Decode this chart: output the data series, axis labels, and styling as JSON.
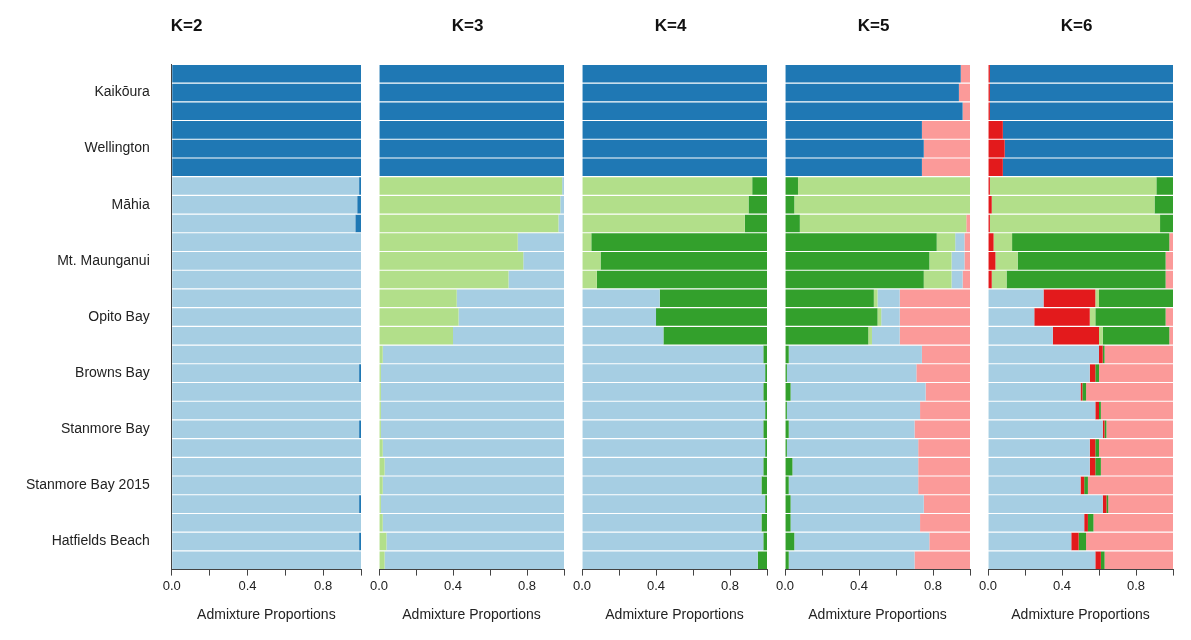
{
  "chart_data": [
    {
      "type": "bar",
      "title": "K=2",
      "xlabel": "Admixture Proportions",
      "orientation": "horizontal",
      "stacked": true,
      "legend": false,
      "grid": false,
      "categories": [
        null,
        "Kaikōura",
        null,
        null,
        "Wellington",
        null,
        null,
        "Māhia",
        null,
        null,
        "Mt. Maunganui",
        null,
        null,
        "Opito Bay",
        null,
        null,
        "Browns Bay",
        null,
        null,
        "Stanmore Bay",
        null,
        null,
        "Stanmore Bay 2015",
        null,
        null,
        "Hatfields Beach",
        null
      ],
      "xlim": [
        0,
        1
      ],
      "xticks": [
        {
          "value": 0,
          "label": "0.0"
        },
        {
          "value": 0.2,
          "label": null
        },
        {
          "value": 0.4,
          "label": "0.4"
        },
        {
          "value": 0.6,
          "label": null
        },
        {
          "value": 0.8,
          "label": "0.8"
        },
        {
          "value": 1,
          "label": null
        }
      ],
      "series": [
        {
          "color": "#a6cee3",
          "values": [
            0,
            0,
            0,
            0,
            0,
            0,
            0.99,
            0.98,
            0.97,
            1,
            1,
            1,
            1,
            1,
            1,
            1,
            0.99,
            1,
            1,
            0.99,
            1,
            1,
            1,
            0.99,
            1,
            0.99,
            1
          ]
        },
        {
          "color": "#1f78b4",
          "values": [
            1,
            1,
            1,
            1,
            1,
            1,
            0.01,
            0.02,
            0.03,
            0,
            0,
            0,
            0,
            0,
            0,
            0,
            0.01,
            0,
            0,
            0.01,
            0,
            0,
            0,
            0.01,
            0,
            0.01,
            0
          ]
        }
      ]
    },
    {
      "type": "bar",
      "title": "K=3",
      "xlabel": "Admixture Proportions",
      "orientation": "horizontal",
      "stacked": true,
      "legend": false,
      "grid": false,
      "tick_labels": "x",
      "categories": [
        null,
        null,
        null,
        null,
        null,
        null,
        null,
        null,
        null,
        null,
        null,
        null,
        null,
        null,
        null,
        null,
        null,
        null,
        null,
        null,
        null,
        null,
        null,
        null,
        null,
        null,
        null
      ],
      "xlim": [
        0,
        1
      ],
      "xticks": [
        {
          "value": 0,
          "label": "0.0"
        },
        {
          "value": 0.2,
          "label": null
        },
        {
          "value": 0.4,
          "label": "0.4"
        },
        {
          "value": 0.6,
          "label": null
        },
        {
          "value": 0.8,
          "label": "0.8"
        },
        {
          "value": 1,
          "label": null
        }
      ],
      "series": [
        {
          "color": "#b2df8a",
          "values": [
            0,
            0,
            0,
            0,
            0,
            0,
            0.99,
            0.98,
            0.97,
            0.75,
            0.78,
            0.7,
            0.42,
            0.43,
            0.4,
            0.02,
            0.01,
            0.01,
            0.01,
            0.01,
            0.02,
            0.03,
            0.02,
            0.01,
            0.02,
            0.04,
            0.03
          ]
        },
        {
          "color": "#a6cee3",
          "values": [
            0,
            0,
            0,
            0,
            0,
            0,
            0.01,
            0.02,
            0.03,
            0.25,
            0.22,
            0.3,
            0.58,
            0.57,
            0.6,
            0.98,
            0.99,
            0.99,
            0.99,
            0.99,
            0.98,
            0.97,
            0.98,
            0.99,
            0.98,
            0.96,
            0.97
          ]
        },
        {
          "color": "#1f78b4",
          "values": [
            1,
            1,
            1,
            1,
            1,
            1,
            0,
            0,
            0,
            0,
            0,
            0,
            0,
            0,
            0,
            0,
            0,
            0,
            0,
            0,
            0,
            0,
            0,
            0,
            0,
            0,
            0
          ]
        }
      ]
    },
    {
      "type": "bar",
      "title": "K=4",
      "xlabel": "Admixture Proportions",
      "orientation": "horizontal",
      "stacked": true,
      "legend": false,
      "grid": false,
      "tick_labels": "x",
      "categories": [
        null,
        null,
        null,
        null,
        null,
        null,
        null,
        null,
        null,
        null,
        null,
        null,
        null,
        null,
        null,
        null,
        null,
        null,
        null,
        null,
        null,
        null,
        null,
        null,
        null,
        null,
        null
      ],
      "xlim": [
        0,
        1
      ],
      "xticks": [
        {
          "value": 0,
          "label": "0.0"
        },
        {
          "value": 0.2,
          "label": null
        },
        {
          "value": 0.4,
          "label": "0.4"
        },
        {
          "value": 0.6,
          "label": null
        },
        {
          "value": 0.8,
          "label": "0.8"
        },
        {
          "value": 1,
          "label": null
        }
      ],
      "series": [
        {
          "color": "#a6cee3",
          "values": [
            0,
            0,
            0,
            0,
            0,
            0,
            0,
            0,
            0,
            0,
            0,
            0,
            0.42,
            0.4,
            0.44,
            0.98,
            0.99,
            0.98,
            0.99,
            0.98,
            0.99,
            0.98,
            0.97,
            0.99,
            0.97,
            0.98,
            0.95
          ]
        },
        {
          "color": "#b2df8a",
          "values": [
            0,
            0,
            0,
            0,
            0,
            0,
            0.92,
            0.9,
            0.88,
            0.05,
            0.1,
            0.08,
            0,
            0,
            0,
            0,
            0,
            0,
            0,
            0,
            0,
            0,
            0,
            0,
            0,
            0,
            0
          ]
        },
        {
          "color": "#33a02c",
          "values": [
            0,
            0,
            0,
            0,
            0,
            0,
            0.08,
            0.1,
            0.12,
            0.95,
            0.9,
            0.92,
            0.58,
            0.6,
            0.56,
            0.02,
            0.01,
            0.02,
            0.01,
            0.02,
            0.01,
            0.02,
            0.03,
            0.01,
            0.03,
            0.02,
            0.05
          ]
        },
        {
          "color": "#1f78b4",
          "values": [
            1,
            1,
            1,
            1,
            1,
            1,
            0,
            0,
            0,
            0,
            0,
            0,
            0,
            0,
            0,
            0,
            0,
            0,
            0,
            0,
            0,
            0,
            0,
            0,
            0,
            0,
            0
          ]
        }
      ]
    },
    {
      "type": "bar",
      "title": "K=5",
      "xlabel": "Admixture Proportions",
      "orientation": "horizontal",
      "stacked": true,
      "legend": false,
      "grid": false,
      "tick_labels": "x",
      "categories": [
        null,
        null,
        null,
        null,
        null,
        null,
        null,
        null,
        null,
        null,
        null,
        null,
        null,
        null,
        null,
        null,
        null,
        null,
        null,
        null,
        null,
        null,
        null,
        null,
        null,
        null,
        null
      ],
      "xlim": [
        0,
        1
      ],
      "xticks": [
        {
          "value": 0,
          "label": "0.0"
        },
        {
          "value": 0.2,
          "label": null
        },
        {
          "value": 0.4,
          "label": "0.4"
        },
        {
          "value": 0.6,
          "label": null
        },
        {
          "value": 0.8,
          "label": "0.8"
        },
        {
          "value": 1,
          "label": null
        }
      ],
      "series": [
        {
          "color": "#33a02c",
          "values": [
            0,
            0,
            0,
            0,
            0,
            0,
            0.07,
            0.05,
            0.08,
            0.82,
            0.78,
            0.75,
            0.48,
            0.5,
            0.45,
            0.02,
            0.01,
            0.03,
            0.01,
            0.02,
            0.01,
            0.04,
            0.02,
            0.03,
            0.03,
            0.05,
            0.02
          ]
        },
        {
          "color": "#b2df8a",
          "values": [
            0,
            0,
            0,
            0,
            0,
            0,
            0.93,
            0.95,
            0.9,
            0.1,
            0.12,
            0.15,
            0.02,
            0.02,
            0.02,
            0,
            0,
            0,
            0,
            0,
            0,
            0,
            0,
            0,
            0,
            0,
            0
          ]
        },
        {
          "color": "#a6cee3",
          "values": [
            0,
            0,
            0,
            0,
            0,
            0,
            0,
            0,
            0,
            0.05,
            0.07,
            0.06,
            0.12,
            0.1,
            0.15,
            0.72,
            0.7,
            0.73,
            0.72,
            0.68,
            0.71,
            0.68,
            0.7,
            0.72,
            0.7,
            0.73,
            0.68
          ]
        },
        {
          "color": "#1f78b4",
          "values": [
            0.95,
            0.94,
            0.96,
            0.74,
            0.75,
            0.74,
            0,
            0,
            0,
            0,
            0,
            0,
            0,
            0,
            0,
            0,
            0,
            0,
            0,
            0,
            0,
            0,
            0,
            0,
            0,
            0,
            0
          ]
        },
        {
          "color": "#fb9a99",
          "values": [
            0.05,
            0.06,
            0.04,
            0.26,
            0.25,
            0.26,
            0,
            0,
            0.02,
            0.03,
            0.03,
            0.04,
            0.38,
            0.38,
            0.38,
            0.26,
            0.29,
            0.24,
            0.27,
            0.3,
            0.28,
            0.28,
            0.28,
            0.25,
            0.27,
            0.22,
            0.3
          ]
        }
      ]
    },
    {
      "type": "bar",
      "title": "K=6",
      "xlabel": "Admixture Proportions",
      "orientation": "horizontal",
      "stacked": true,
      "legend": false,
      "grid": false,
      "tick_labels": "x",
      "categories": [
        null,
        null,
        null,
        null,
        null,
        null,
        null,
        null,
        null,
        null,
        null,
        null,
        null,
        null,
        null,
        null,
        null,
        null,
        null,
        null,
        null,
        null,
        null,
        null,
        null,
        null,
        null
      ],
      "xlim": [
        0,
        1
      ],
      "xticks": [
        {
          "value": 0,
          "label": "0.0"
        },
        {
          "value": 0.2,
          "label": null
        },
        {
          "value": 0.4,
          "label": "0.4"
        },
        {
          "value": 0.6,
          "label": null
        },
        {
          "value": 0.8,
          "label": "0.8"
        },
        {
          "value": 1,
          "label": null
        }
      ],
      "series": [
        {
          "color": "#a6cee3",
          "values": [
            0,
            0,
            0,
            0,
            0,
            0,
            0,
            0,
            0,
            0,
            0,
            0,
            0.3,
            0.25,
            0.35,
            0.6,
            0.55,
            0.5,
            0.58,
            0.62,
            0.55,
            0.55,
            0.5,
            0.62,
            0.52,
            0.45,
            0.58
          ]
        },
        {
          "color": "#e31a1c",
          "values": [
            0.01,
            0.01,
            0.01,
            0.08,
            0.09,
            0.08,
            0.01,
            0.02,
            0.01,
            0.03,
            0.04,
            0.02,
            0.28,
            0.3,
            0.25,
            0.02,
            0.03,
            0.01,
            0.02,
            0.01,
            0.03,
            0.03,
            0.02,
            0.02,
            0.02,
            0.04,
            0.03
          ]
        },
        {
          "color": "#b2df8a",
          "values": [
            0,
            0,
            0,
            0,
            0,
            0,
            0.9,
            0.88,
            0.92,
            0.1,
            0.12,
            0.08,
            0.02,
            0.03,
            0.02,
            0,
            0,
            0,
            0,
            0,
            0,
            0,
            0,
            0,
            0,
            0,
            0
          ]
        },
        {
          "color": "#33a02c",
          "values": [
            0,
            0,
            0,
            0,
            0,
            0,
            0.09,
            0.1,
            0.07,
            0.85,
            0.8,
            0.86,
            0.4,
            0.38,
            0.36,
            0.01,
            0.02,
            0.02,
            0.01,
            0.01,
            0.02,
            0.03,
            0.02,
            0.01,
            0.03,
            0.04,
            0.02
          ]
        },
        {
          "color": "#1f78b4",
          "values": [
            0.99,
            0.99,
            0.99,
            0.92,
            0.91,
            0.92,
            0,
            0,
            0,
            0,
            0,
            0,
            0,
            0,
            0,
            0,
            0,
            0,
            0,
            0,
            0,
            0,
            0,
            0,
            0,
            0,
            0
          ]
        },
        {
          "color": "#fb9a99",
          "values": [
            0,
            0,
            0,
            0,
            0,
            0,
            0,
            0,
            0,
            0.02,
            0.04,
            0.04,
            0,
            0.04,
            0.02,
            0.37,
            0.4,
            0.47,
            0.39,
            0.36,
            0.4,
            0.39,
            0.46,
            0.35,
            0.43,
            0.47,
            0.37
          ]
        }
      ]
    }
  ]
}
